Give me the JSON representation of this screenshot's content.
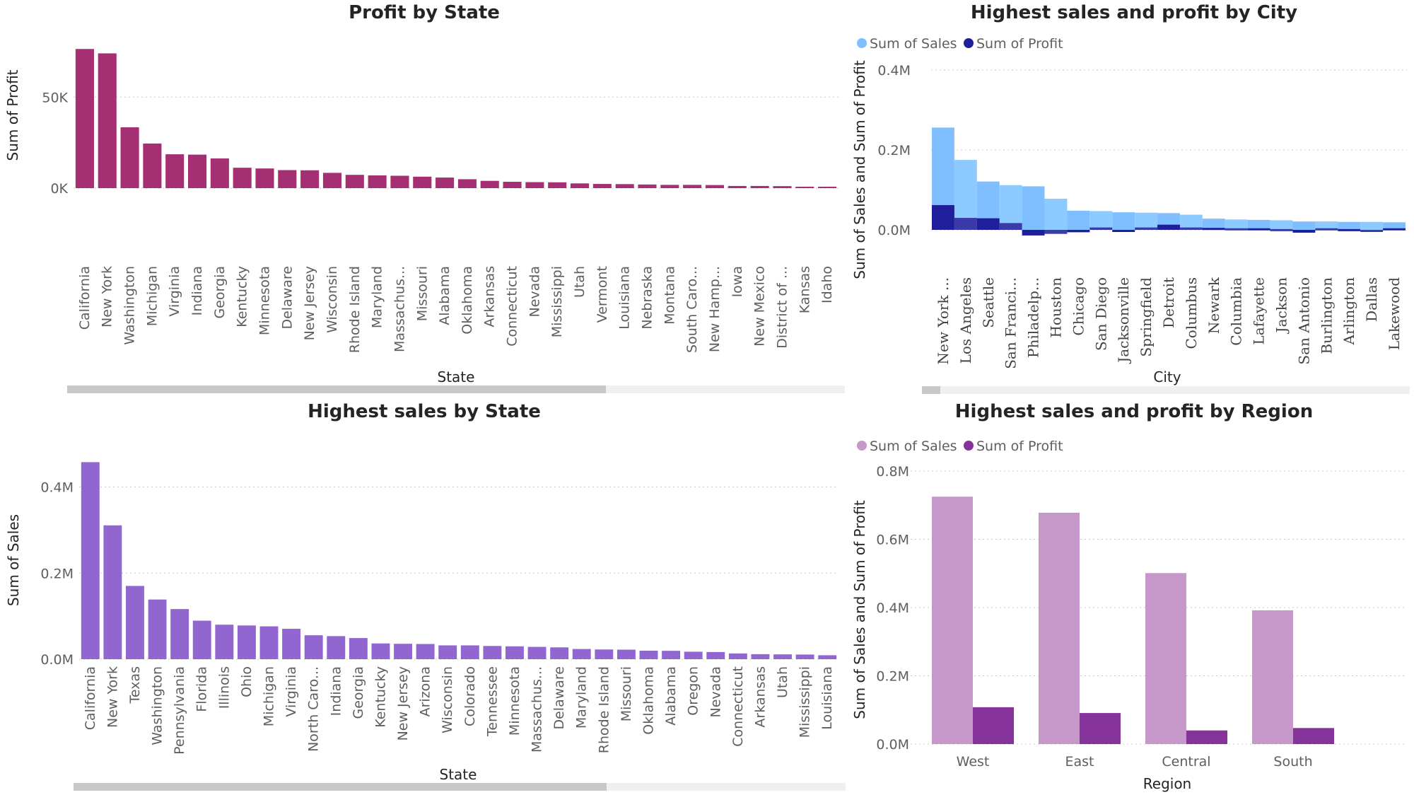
{
  "chart_data": [
    {
      "type": "bar",
      "title": "Profit by State",
      "xlabel": "State",
      "ylabel": "Sum of Profit",
      "ylim": [
        0,
        80000
      ],
      "yticks": [
        "0K",
        "50K"
      ],
      "color": "#a52f73",
      "categories": [
        "California",
        "New York",
        "Washington",
        "Michigan",
        "Virginia",
        "Indiana",
        "Georgia",
        "Kentucky",
        "Minnesota",
        "Delaware",
        "New Jersey",
        "Wisconsin",
        "Rhode Island",
        "Maryland",
        "Massachus...",
        "Missouri",
        "Alabama",
        "Oklahoma",
        "Arkansas",
        "Connecticut",
        "Nevada",
        "Mississippi",
        "Utah",
        "Vermont",
        "Louisiana",
        "Nebraska",
        "Montana",
        "South Caro...",
        "New Hamp...",
        "Iowa",
        "New Mexico",
        "District of ...",
        "Kansas",
        "Idaho"
      ],
      "values": [
        76400,
        74000,
        33400,
        24500,
        18600,
        18400,
        16300,
        11200,
        10800,
        9900,
        9800,
        8400,
        7300,
        7000,
        6800,
        6300,
        5800,
        4900,
        4000,
        3500,
        3300,
        3200,
        2600,
        2300,
        2200,
        2000,
        1800,
        1800,
        1700,
        1200,
        1200,
        1100,
        800,
        800
      ],
      "grid": true,
      "legend": "none"
    },
    {
      "type": "area",
      "title": "Highest sales and profit by City",
      "xlabel": "City",
      "ylabel": "Sum of Sales and Sum of Profit",
      "ylim": [
        0,
        400000
      ],
      "yticks": [
        "0.0M",
        "0.2M",
        "0.4M"
      ],
      "legend": "top-left",
      "categories": [
        "New York ...",
        "Los Angeles",
        "Seattle",
        "San Franci...",
        "Philadelp...",
        "Houston",
        "Chicago",
        "San Diego",
        "Jacksonville",
        "Springfield",
        "Detroit",
        "Columbus",
        "Newark",
        "Columbia",
        "Lafayette",
        "Jackson",
        "San Antonio",
        "Burlington",
        "Arlington",
        "Dallas",
        "Lakewood"
      ],
      "series": [
        {
          "name": "Sum of Sales",
          "color": "#7fbfff",
          "values": [
            256000,
            175000,
            121000,
            112000,
            109000,
            78000,
            48000,
            47000,
            44000,
            43000,
            42000,
            38000,
            28000,
            26000,
            25000,
            24000,
            21000,
            21000,
            20000,
            20000,
            19000
          ]
        },
        {
          "name": "Sum of Profit",
          "color": "#1f1f9c",
          "values": [
            62000,
            30000,
            29000,
            17000,
            -14000,
            -10000,
            -6000,
            6000,
            -2000,
            6000,
            13000,
            6000,
            5000,
            4000,
            4000,
            2000,
            -7000,
            4000,
            2000,
            -3000,
            4000
          ]
        }
      ],
      "grid": true
    },
    {
      "type": "bar",
      "title": "Highest sales by State",
      "xlabel": "State",
      "ylabel": "Sum of Sales",
      "ylim": [
        0,
        460000
      ],
      "yticks": [
        "0.0M",
        "0.2M",
        "0.4M"
      ],
      "color": "#9166d1",
      "categories": [
        "California",
        "New York",
        "Texas",
        "Washington",
        "Pennsylvania",
        "Florida",
        "Illinois",
        "Ohio",
        "Michigan",
        "Virginia",
        "North Caro...",
        "Indiana",
        "Georgia",
        "Kentucky",
        "New Jersey",
        "Arizona",
        "Wisconsin",
        "Colorado",
        "Tennessee",
        "Minnesota",
        "Massachus...",
        "Delaware",
        "Maryland",
        "Rhode Island",
        "Missouri",
        "Oklahoma",
        "Alabama",
        "Oregon",
        "Nevada",
        "Connecticut",
        "Arkansas",
        "Utah",
        "Mississippi",
        "Louisiana"
      ],
      "values": [
        457700,
        310900,
        170200,
        138600,
        116500,
        89500,
        80200,
        78300,
        76300,
        70600,
        55600,
        53600,
        49100,
        36600,
        35800,
        35300,
        32100,
        32100,
        30700,
        29900,
        28600,
        27500,
        23700,
        22600,
        22200,
        19700,
        19500,
        17400,
        16700,
        13400,
        11700,
        11200,
        10800,
        9200
      ],
      "grid": true,
      "legend": "none"
    },
    {
      "type": "bar",
      "title": "Highest sales and profit by Region",
      "xlabel": "Region",
      "ylabel": "Sum of Sales and Sum of Profit",
      "ylim": [
        0,
        800000
      ],
      "yticks": [
        "0.0M",
        "0.2M",
        "0.4M",
        "0.6M",
        "0.8M"
      ],
      "legend": "top-left",
      "categories": [
        "West",
        "East",
        "Central",
        "South"
      ],
      "series": [
        {
          "name": "Sum of Sales",
          "color": "#c598c9",
          "values": [
            725000,
            678000,
            501000,
            392000
          ]
        },
        {
          "name": "Sum of Profit",
          "color": "#86329b",
          "values": [
            108000,
            91000,
            40000,
            47000
          ]
        }
      ],
      "grid": true
    }
  ]
}
